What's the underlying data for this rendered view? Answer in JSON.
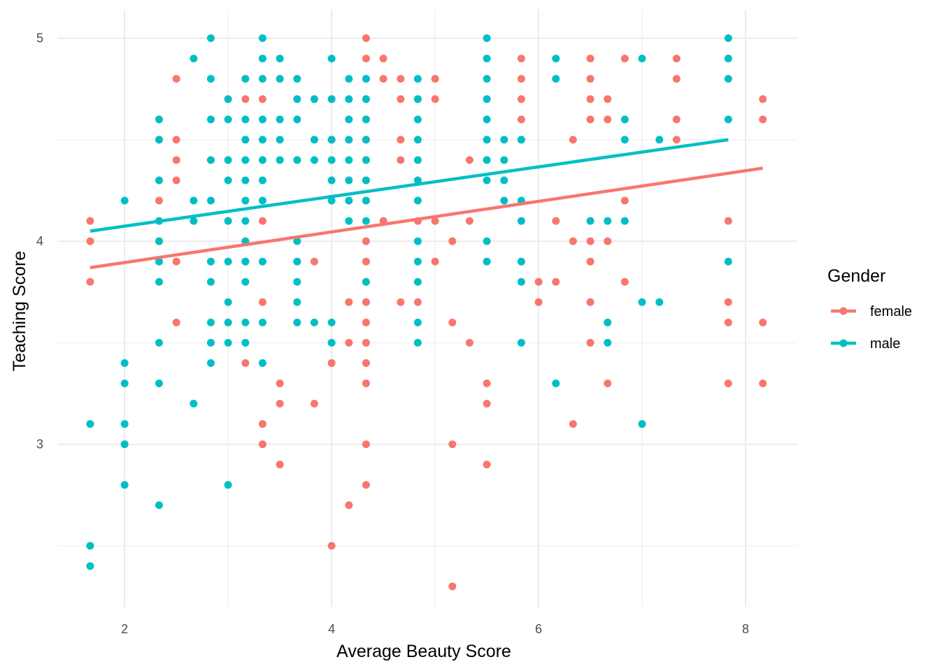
{
  "chart_data": {
    "type": "scatter",
    "xlabel": "Average Beauty Score",
    "ylabel": "Teaching Score",
    "xlim": [
      1.35,
      8.5
    ],
    "ylim": [
      2.2,
      5.14
    ],
    "x_ticks": [
      "2",
      "4",
      "6",
      "8"
    ],
    "x_tick_values": [
      2,
      4,
      6,
      8
    ],
    "x_minor": [
      3,
      5,
      7
    ],
    "y_ticks": [
      "3",
      "4",
      "5"
    ],
    "y_tick_values": [
      3,
      4,
      5
    ],
    "y_minor": [
      2.5,
      3.5,
      4.5
    ],
    "grid": true,
    "legend": {
      "title": "Gender",
      "position": "right",
      "entries": [
        "female",
        "male"
      ]
    },
    "colors": {
      "female": "#F8766D",
      "male": "#00BFC4"
    },
    "series": [
      {
        "name": "female",
        "color": "#F8766D",
        "fit": {
          "x": [
            1.667,
            8.167
          ],
          "y": [
            3.87,
            4.36
          ]
        },
        "points": [
          [
            1.667,
            4.1
          ],
          [
            1.667,
            4.0
          ],
          [
            1.667,
            3.8
          ],
          [
            2.333,
            4.5
          ],
          [
            2.333,
            4.2
          ],
          [
            2.333,
            4.0
          ],
          [
            2.5,
            4.8
          ],
          [
            2.5,
            4.5
          ],
          [
            2.5,
            4.4
          ],
          [
            2.5,
            4.3
          ],
          [
            2.5,
            3.9
          ],
          [
            2.5,
            3.6
          ],
          [
            3.167,
            4.7
          ],
          [
            3.167,
            4.5
          ],
          [
            3.167,
            3.9
          ],
          [
            3.167,
            3.4
          ],
          [
            3.333,
            4.7
          ],
          [
            3.333,
            4.1
          ],
          [
            3.333,
            3.7
          ],
          [
            3.333,
            3.1
          ],
          [
            3.333,
            3.0
          ],
          [
            3.5,
            3.3
          ],
          [
            3.5,
            3.2
          ],
          [
            3.5,
            2.9
          ],
          [
            3.833,
            3.9
          ],
          [
            3.833,
            3.2
          ],
          [
            4.0,
            4.5
          ],
          [
            4.0,
            3.4
          ],
          [
            4.0,
            2.5
          ],
          [
            4.167,
            3.7
          ],
          [
            4.167,
            3.5
          ],
          [
            4.167,
            2.7
          ],
          [
            4.333,
            5.0
          ],
          [
            4.333,
            4.9
          ],
          [
            4.333,
            4.8
          ],
          [
            4.333,
            4.7
          ],
          [
            4.333,
            4.6
          ],
          [
            4.333,
            4.5
          ],
          [
            4.333,
            4.4
          ],
          [
            4.333,
            4.3
          ],
          [
            4.333,
            4.2
          ],
          [
            4.333,
            4.0
          ],
          [
            4.333,
            3.9
          ],
          [
            4.333,
            3.8
          ],
          [
            4.333,
            3.7
          ],
          [
            4.333,
            3.6
          ],
          [
            4.333,
            3.5
          ],
          [
            4.333,
            3.4
          ],
          [
            4.333,
            3.3
          ],
          [
            4.333,
            3.0
          ],
          [
            4.333,
            2.8
          ],
          [
            4.5,
            4.9
          ],
          [
            4.5,
            4.8
          ],
          [
            4.5,
            4.1
          ],
          [
            4.667,
            4.8
          ],
          [
            4.667,
            4.7
          ],
          [
            4.667,
            4.5
          ],
          [
            4.667,
            4.4
          ],
          [
            4.667,
            3.7
          ],
          [
            4.833,
            4.7
          ],
          [
            4.833,
            4.1
          ],
          [
            4.833,
            3.7
          ],
          [
            5.0,
            4.8
          ],
          [
            5.0,
            4.7
          ],
          [
            5.0,
            4.1
          ],
          [
            5.0,
            3.9
          ],
          [
            5.167,
            4.0
          ],
          [
            5.167,
            3.6
          ],
          [
            5.167,
            3.0
          ],
          [
            5.167,
            2.3
          ],
          [
            5.333,
            4.4
          ],
          [
            5.333,
            4.1
          ],
          [
            5.333,
            3.5
          ],
          [
            5.5,
            3.3
          ],
          [
            5.5,
            3.2
          ],
          [
            5.5,
            2.9
          ],
          [
            5.833,
            4.9
          ],
          [
            5.833,
            4.8
          ],
          [
            5.833,
            4.7
          ],
          [
            5.833,
            4.6
          ],
          [
            5.833,
            4.5
          ],
          [
            6.0,
            3.8
          ],
          [
            6.0,
            3.7
          ],
          [
            6.167,
            4.1
          ],
          [
            6.167,
            3.8
          ],
          [
            6.333,
            4.5
          ],
          [
            6.333,
            4.0
          ],
          [
            6.333,
            3.1
          ],
          [
            6.5,
            4.9
          ],
          [
            6.5,
            4.8
          ],
          [
            6.5,
            4.7
          ],
          [
            6.5,
            4.6
          ],
          [
            6.5,
            4.0
          ],
          [
            6.5,
            3.9
          ],
          [
            6.5,
            3.7
          ],
          [
            6.5,
            3.5
          ],
          [
            6.667,
            4.7
          ],
          [
            6.667,
            4.6
          ],
          [
            6.667,
            4.0
          ],
          [
            6.667,
            3.3
          ],
          [
            6.833,
            4.9
          ],
          [
            6.833,
            4.2
          ],
          [
            6.833,
            3.8
          ],
          [
            7.333,
            4.9
          ],
          [
            7.333,
            4.8
          ],
          [
            7.333,
            4.6
          ],
          [
            7.333,
            4.5
          ],
          [
            7.833,
            4.1
          ],
          [
            7.833,
            3.7
          ],
          [
            7.833,
            3.6
          ],
          [
            7.833,
            3.3
          ],
          [
            8.167,
            4.7
          ],
          [
            8.167,
            4.6
          ],
          [
            8.167,
            3.6
          ],
          [
            8.167,
            3.3
          ]
        ]
      },
      {
        "name": "male",
        "color": "#00BFC4",
        "fit": {
          "x": [
            1.667,
            7.833
          ],
          "y": [
            4.05,
            4.5
          ]
        },
        "points": [
          [
            1.667,
            3.1
          ],
          [
            1.667,
            2.5
          ],
          [
            1.667,
            2.4
          ],
          [
            2.0,
            4.2
          ],
          [
            2.0,
            3.4
          ],
          [
            2.0,
            3.3
          ],
          [
            2.0,
            3.1
          ],
          [
            2.0,
            3.0
          ],
          [
            2.0,
            2.8
          ],
          [
            2.333,
            4.6
          ],
          [
            2.333,
            4.5
          ],
          [
            2.333,
            4.3
          ],
          [
            2.333,
            4.1
          ],
          [
            2.333,
            4.0
          ],
          [
            2.333,
            3.9
          ],
          [
            2.333,
            3.8
          ],
          [
            2.333,
            3.5
          ],
          [
            2.333,
            3.3
          ],
          [
            2.333,
            2.7
          ],
          [
            2.667,
            4.9
          ],
          [
            2.667,
            4.2
          ],
          [
            2.667,
            4.1
          ],
          [
            2.667,
            3.2
          ],
          [
            2.833,
            5.0
          ],
          [
            2.833,
            4.8
          ],
          [
            2.833,
            4.6
          ],
          [
            2.833,
            4.4
          ],
          [
            2.833,
            4.2
          ],
          [
            2.833,
            3.9
          ],
          [
            2.833,
            3.8
          ],
          [
            2.833,
            3.6
          ],
          [
            2.833,
            3.5
          ],
          [
            2.833,
            3.4
          ],
          [
            3.0,
            4.7
          ],
          [
            3.0,
            4.6
          ],
          [
            3.0,
            4.4
          ],
          [
            3.0,
            4.3
          ],
          [
            3.0,
            4.1
          ],
          [
            3.0,
            3.9
          ],
          [
            3.0,
            3.7
          ],
          [
            3.0,
            3.6
          ],
          [
            3.0,
            3.5
          ],
          [
            3.0,
            2.8
          ],
          [
            3.167,
            4.8
          ],
          [
            3.167,
            4.6
          ],
          [
            3.167,
            4.5
          ],
          [
            3.167,
            4.4
          ],
          [
            3.167,
            4.3
          ],
          [
            3.167,
            4.2
          ],
          [
            3.167,
            4.1
          ],
          [
            3.167,
            4.0
          ],
          [
            3.167,
            3.9
          ],
          [
            3.167,
            3.8
          ],
          [
            3.167,
            3.6
          ],
          [
            3.167,
            3.5
          ],
          [
            3.333,
            5.0
          ],
          [
            3.333,
            4.9
          ],
          [
            3.333,
            4.8
          ],
          [
            3.333,
            4.6
          ],
          [
            3.333,
            4.5
          ],
          [
            3.333,
            4.4
          ],
          [
            3.333,
            4.3
          ],
          [
            3.333,
            4.2
          ],
          [
            3.333,
            3.9
          ],
          [
            3.333,
            3.6
          ],
          [
            3.333,
            3.4
          ],
          [
            3.5,
            4.9
          ],
          [
            3.5,
            4.8
          ],
          [
            3.5,
            4.6
          ],
          [
            3.5,
            4.5
          ],
          [
            3.5,
            4.4
          ],
          [
            3.667,
            4.8
          ],
          [
            3.667,
            4.7
          ],
          [
            3.667,
            4.6
          ],
          [
            3.667,
            4.4
          ],
          [
            3.667,
            4.0
          ],
          [
            3.667,
            3.9
          ],
          [
            3.667,
            3.8
          ],
          [
            3.667,
            3.7
          ],
          [
            3.667,
            3.6
          ],
          [
            3.833,
            4.7
          ],
          [
            3.833,
            4.5
          ],
          [
            3.833,
            4.4
          ],
          [
            3.833,
            3.6
          ],
          [
            4.0,
            4.9
          ],
          [
            4.0,
            4.7
          ],
          [
            4.0,
            4.5
          ],
          [
            4.0,
            4.4
          ],
          [
            4.0,
            4.3
          ],
          [
            4.0,
            4.2
          ],
          [
            4.0,
            3.6
          ],
          [
            4.0,
            3.5
          ],
          [
            4.167,
            4.8
          ],
          [
            4.167,
            4.7
          ],
          [
            4.167,
            4.6
          ],
          [
            4.167,
            4.5
          ],
          [
            4.167,
            4.4
          ],
          [
            4.167,
            4.3
          ],
          [
            4.167,
            4.2
          ],
          [
            4.167,
            4.1
          ],
          [
            4.333,
            4.8
          ],
          [
            4.333,
            4.7
          ],
          [
            4.333,
            4.6
          ],
          [
            4.333,
            4.5
          ],
          [
            4.333,
            4.4
          ],
          [
            4.333,
            4.3
          ],
          [
            4.333,
            4.2
          ],
          [
            4.333,
            4.1
          ],
          [
            4.333,
            3.8
          ],
          [
            4.833,
            4.8
          ],
          [
            4.833,
            4.7
          ],
          [
            4.833,
            4.6
          ],
          [
            4.833,
            4.5
          ],
          [
            4.833,
            4.4
          ],
          [
            4.833,
            4.3
          ],
          [
            4.833,
            4.2
          ],
          [
            4.833,
            4.0
          ],
          [
            4.833,
            3.9
          ],
          [
            4.833,
            3.8
          ],
          [
            4.833,
            3.6
          ],
          [
            4.833,
            3.5
          ],
          [
            5.5,
            5.0
          ],
          [
            5.5,
            4.9
          ],
          [
            5.5,
            4.8
          ],
          [
            5.5,
            4.7
          ],
          [
            5.5,
            4.6
          ],
          [
            5.5,
            4.5
          ],
          [
            5.5,
            4.4
          ],
          [
            5.5,
            4.3
          ],
          [
            5.5,
            4.0
          ],
          [
            5.5,
            3.9
          ],
          [
            5.667,
            4.5
          ],
          [
            5.667,
            4.4
          ],
          [
            5.667,
            4.3
          ],
          [
            5.667,
            4.2
          ],
          [
            5.833,
            4.5
          ],
          [
            5.833,
            4.2
          ],
          [
            5.833,
            4.1
          ],
          [
            5.833,
            3.9
          ],
          [
            5.833,
            3.8
          ],
          [
            5.833,
            3.5
          ],
          [
            6.167,
            4.9
          ],
          [
            6.167,
            4.8
          ],
          [
            6.167,
            3.3
          ],
          [
            6.5,
            4.1
          ],
          [
            6.667,
            4.1
          ],
          [
            6.667,
            3.6
          ],
          [
            6.667,
            3.5
          ],
          [
            6.833,
            4.6
          ],
          [
            6.833,
            4.5
          ],
          [
            6.833,
            4.1
          ],
          [
            7.0,
            4.9
          ],
          [
            7.0,
            3.7
          ],
          [
            7.0,
            3.1
          ],
          [
            7.167,
            4.5
          ],
          [
            7.167,
            3.7
          ],
          [
            7.833,
            5.0
          ],
          [
            7.833,
            4.9
          ],
          [
            7.833,
            4.8
          ],
          [
            7.833,
            4.6
          ],
          [
            7.833,
            3.9
          ]
        ]
      }
    ]
  }
}
